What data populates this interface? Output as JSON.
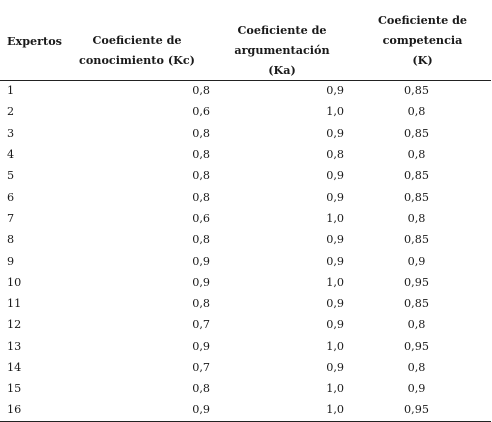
{
  "table": {
    "headers": {
      "experts": "Expertos",
      "kc_line1": "Coeficiente de",
      "kc_line2": "conocimiento (Kc)",
      "ka_line1": "Coeficiente de",
      "ka_line2": "argumentación (Ka)",
      "k_line1": "Coeficiente de",
      "k_line2": "competencia",
      "k_line3": "(K)"
    },
    "rows": [
      {
        "expert": "1",
        "kc": "0,8",
        "ka": "0,9",
        "k": "0,85"
      },
      {
        "expert": "2",
        "kc": "0,6",
        "ka": "1,0",
        "k": "0,8"
      },
      {
        "expert": "3",
        "kc": "0,8",
        "ka": "0,9",
        "k": "0,85"
      },
      {
        "expert": "4",
        "kc": "0,8",
        "ka": "0,8",
        "k": "0,8"
      },
      {
        "expert": "5",
        "kc": "0,8",
        "ka": "0,9",
        "k": "0,85"
      },
      {
        "expert": "6",
        "kc": "0,8",
        "ka": "0,9",
        "k": "0,85"
      },
      {
        "expert": "7",
        "kc": "0,6",
        "ka": "1,0",
        "k": "0,8"
      },
      {
        "expert": "8",
        "kc": "0,8",
        "ka": "0,9",
        "k": "0,85"
      },
      {
        "expert": "9",
        "kc": "0,9",
        "ka": "0,9",
        "k": "0,9"
      },
      {
        "expert": "10",
        "kc": "0,9",
        "ka": "1,0",
        "k": "0,95"
      },
      {
        "expert": "11",
        "kc": "0,8",
        "ka": "0,9",
        "k": "0,85"
      },
      {
        "expert": "12",
        "kc": "0,7",
        "ka": "0,9",
        "k": "0,8"
      },
      {
        "expert": "13",
        "kc": "0,9",
        "ka": "1,0",
        "k": "0,95"
      },
      {
        "expert": "14",
        "kc": "0,7",
        "ka": "0,9",
        "k": "0,8"
      },
      {
        "expert": "15",
        "kc": "0,8",
        "ka": "1,0",
        "k": "0,9"
      },
      {
        "expert": "16",
        "kc": "0,9",
        "ka": "1,0",
        "k": "0,95"
      }
    ]
  }
}
